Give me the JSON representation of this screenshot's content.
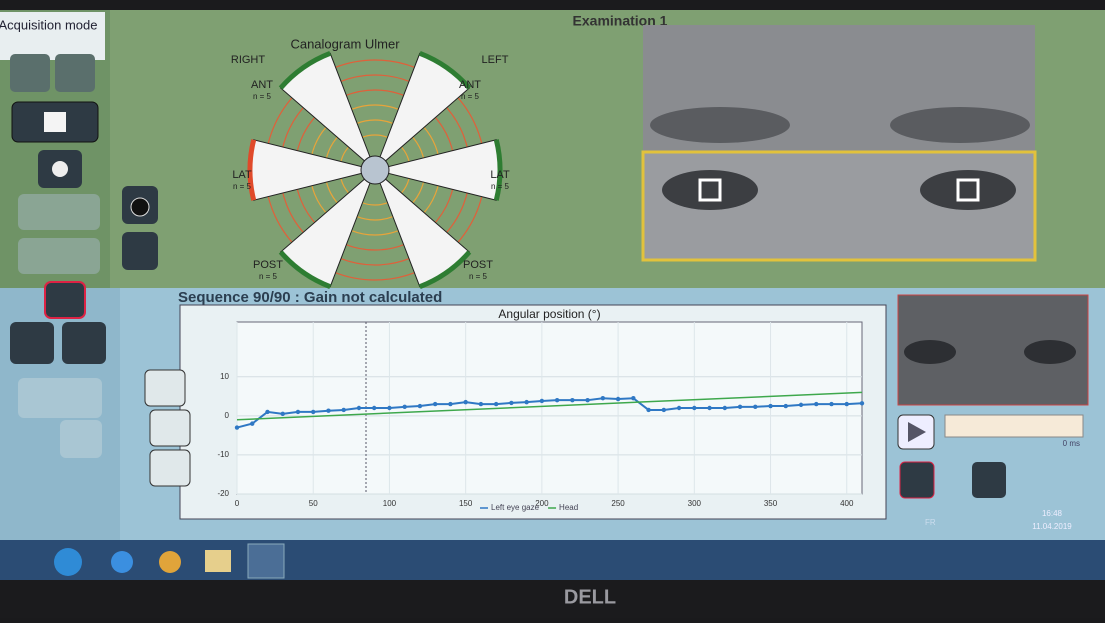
{
  "sidebar": {
    "mode_label": "Acquisition mode"
  },
  "header": {
    "title": "Examination 1"
  },
  "canalogram": {
    "title": "Canalogram Ulmer",
    "right": "RIGHT",
    "left": "LEFT",
    "sectors": [
      {
        "name": "ANT",
        "n": "n = 5"
      },
      {
        "name": "ANT",
        "n": "n = 5"
      },
      {
        "name": "LAT",
        "n": "n = 5"
      },
      {
        "name": "LAT",
        "n": "n = 5"
      },
      {
        "name": "POST",
        "n": "n = 5"
      },
      {
        "name": "POST",
        "n": "n = 5"
      }
    ]
  },
  "sequence": {
    "title": "Sequence 90/90 : Gain not calculated"
  },
  "player": {
    "time": "0 ms"
  },
  "taskbar": {
    "lang": "FR",
    "time": "16:48",
    "date": "11.04.2019"
  },
  "bezel": {
    "brand": "DELL"
  },
  "chart_data": {
    "type": "line",
    "title": "Angular position (°)",
    "x": [
      0,
      10,
      20,
      30,
      40,
      50,
      60,
      70,
      80,
      90,
      100,
      110,
      120,
      130,
      140,
      150,
      160,
      170,
      180,
      190,
      200,
      210,
      220,
      230,
      240,
      250,
      260,
      270,
      280,
      290,
      300,
      310,
      320,
      330,
      340,
      350,
      360,
      370,
      380,
      390,
      400,
      410
    ],
    "series": [
      {
        "name": "Left eye gaze",
        "color": "#2f78c4",
        "values": [
          -3,
          -2,
          1,
          0.5,
          1,
          1,
          1.3,
          1.5,
          2,
          2,
          2,
          2.3,
          2.5,
          3,
          3,
          3.5,
          3,
          3,
          3.3,
          3.5,
          3.8,
          4,
          4,
          4,
          4.5,
          4.3,
          4.5,
          1.5,
          1.5,
          2,
          2,
          2,
          2,
          2.3,
          2.3,
          2.5,
          2.5,
          2.8,
          3,
          3,
          3,
          3.2
        ]
      },
      {
        "name": "Head",
        "color": "#3ea84c",
        "x": [
          0,
          410
        ],
        "values": [
          -1,
          6
        ]
      }
    ],
    "xlim": [
      0,
      410
    ],
    "ylim": [
      -20,
      24
    ],
    "xticks": [
      0,
      50,
      100,
      150,
      200,
      250,
      300,
      350,
      400
    ],
    "yticks": [
      -20,
      -10,
      0,
      10
    ],
    "grid": true
  }
}
